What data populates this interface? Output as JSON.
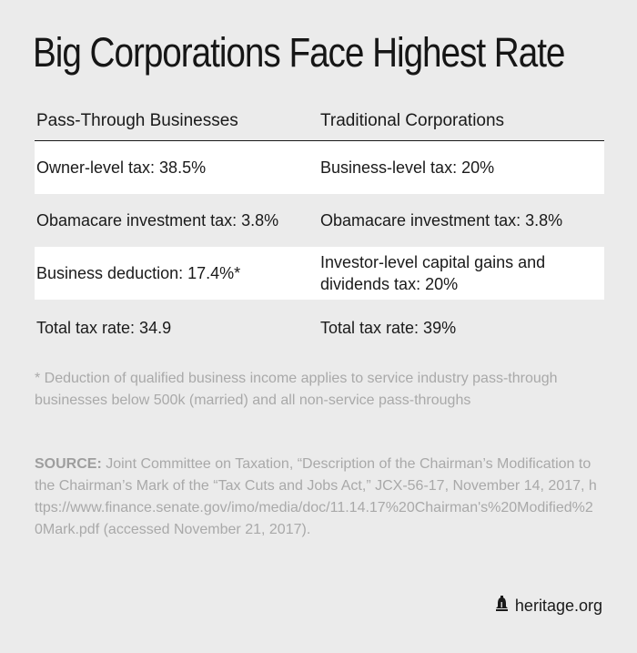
{
  "title": "Big Corporations Face Highest Rate",
  "columns": [
    "Pass-Through Businesses",
    "Traditional Corporations"
  ],
  "rows": [
    [
      "Owner-level tax: 38.5%",
      "Business-level tax: 20%"
    ],
    [
      "Obamacare investment tax: 3.8%",
      "Obamacare investment tax: 3.8%"
    ],
    [
      "Business deduction: 17.4%*",
      "Investor-level capital gains and dividends tax: 20%"
    ],
    [
      "Total tax rate: 34.9",
      "Total tax rate: 39%"
    ]
  ],
  "footnote": "* Deduction of qualified business income applies to service industry pass-through businesses below 500k (married) and all non-service pass-throughs",
  "source": {
    "label": "SOURCE:",
    "text": " Joint Committee on Taxation, “Description of the Chairman’s Modification to the Chairman’s Mark of the “Tax Cuts and Jobs Act,” JCX-56-17, November 14, 2017, https://www.finance.senate.gov/imo/media/doc/11.14.17%20Chairman's%20Modified%20Mark.pdf (accessed November 21, 2017)."
  },
  "brand": {
    "icon": "liberty-bell-icon",
    "text": "heritage.org"
  }
}
